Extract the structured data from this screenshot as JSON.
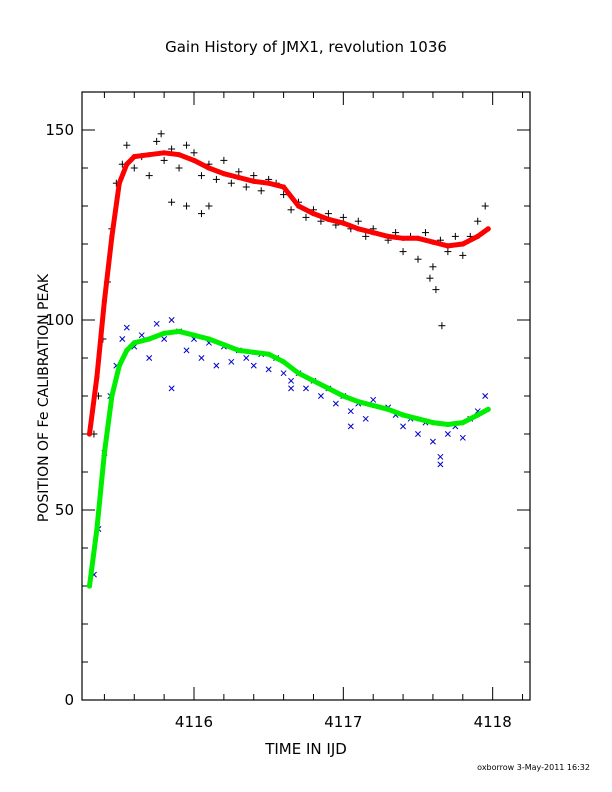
{
  "chart_data": {
    "type": "scatter",
    "title": "Gain History of JMX1, revolution 1036",
    "xlabel": "TIME IN IJD",
    "ylabel": "POSITION OF Fe CALIBRATION PEAK",
    "xlim": [
      4115.25,
      4118.25
    ],
    "ylim": [
      0,
      160
    ],
    "xticks": [
      4116,
      4117,
      4118
    ],
    "xtick_labels": [
      "4116",
      "4117",
      "4118"
    ],
    "yticks": [
      0,
      50,
      100,
      150
    ],
    "ytick_labels": [
      "0",
      "50",
      "100",
      "150"
    ],
    "grid": false,
    "legend": "none",
    "footer": "oxborrow   3-May-2011 16:32",
    "series": [
      {
        "kind": "raw_plus",
        "color": "#000000",
        "marker": "plus",
        "points": [
          [
            4115.33,
            70
          ],
          [
            4115.36,
            80
          ],
          [
            4115.39,
            95
          ],
          [
            4115.42,
            110
          ],
          [
            4115.45,
            124
          ],
          [
            4115.48,
            136
          ],
          [
            4115.52,
            141
          ],
          [
            4115.55,
            146
          ],
          [
            4115.6,
            140
          ],
          [
            4115.65,
            143
          ],
          [
            4115.7,
            138
          ],
          [
            4115.75,
            147
          ],
          [
            4115.78,
            149
          ],
          [
            4115.8,
            142
          ],
          [
            4115.85,
            145
          ],
          [
            4115.9,
            140
          ],
          [
            4115.95,
            146
          ],
          [
            4116.0,
            144
          ],
          [
            4116.05,
            138
          ],
          [
            4116.1,
            141
          ],
          [
            4116.15,
            137
          ],
          [
            4116.2,
            142
          ],
          [
            4116.25,
            136
          ],
          [
            4116.3,
            139
          ],
          [
            4116.35,
            135
          ],
          [
            4116.4,
            138
          ],
          [
            4116.45,
            134
          ],
          [
            4116.5,
            137
          ],
          [
            4116.55,
            136
          ],
          [
            4116.6,
            133
          ],
          [
            4116.65,
            129
          ],
          [
            4116.7,
            131
          ],
          [
            4116.75,
            127
          ],
          [
            4116.8,
            129
          ],
          [
            4116.85,
            126
          ],
          [
            4116.9,
            128
          ],
          [
            4116.95,
            125
          ],
          [
            4117.0,
            127
          ],
          [
            4117.05,
            124
          ],
          [
            4117.1,
            126
          ],
          [
            4117.15,
            122
          ],
          [
            4117.2,
            124
          ],
          [
            4117.3,
            121
          ],
          [
            4117.35,
            123
          ],
          [
            4117.4,
            118
          ],
          [
            4117.45,
            122
          ],
          [
            4117.5,
            116
          ],
          [
            4117.55,
            123
          ],
          [
            4117.6,
            114
          ],
          [
            4117.65,
            121
          ],
          [
            4117.7,
            118
          ],
          [
            4117.75,
            122
          ],
          [
            4117.8,
            117
          ],
          [
            4117.85,
            122
          ],
          [
            4117.9,
            126
          ],
          [
            4117.95,
            130
          ],
          [
            4115.95,
            130
          ],
          [
            4116.05,
            128
          ],
          [
            4116.1,
            130
          ],
          [
            4115.85,
            131
          ],
          [
            4117.58,
            111
          ],
          [
            4117.62,
            108
          ],
          [
            4117.66,
            98.5
          ]
        ]
      },
      {
        "kind": "fit",
        "color": "#ff0000",
        "marker": "line",
        "points": [
          [
            4115.3,
            70
          ],
          [
            4115.35,
            85
          ],
          [
            4115.4,
            105
          ],
          [
            4115.45,
            122
          ],
          [
            4115.5,
            136
          ],
          [
            4115.55,
            141
          ],
          [
            4115.6,
            143
          ],
          [
            4115.7,
            143.5
          ],
          [
            4115.8,
            144
          ],
          [
            4115.9,
            143.5
          ],
          [
            4116.0,
            142
          ],
          [
            4116.1,
            140
          ],
          [
            4116.2,
            138.5
          ],
          [
            4116.3,
            137.5
          ],
          [
            4116.4,
            136.5
          ],
          [
            4116.5,
            136
          ],
          [
            4116.6,
            135
          ],
          [
            4116.7,
            130
          ],
          [
            4116.8,
            128
          ],
          [
            4116.9,
            126.5
          ],
          [
            4117.0,
            125.5
          ],
          [
            4117.1,
            124
          ],
          [
            4117.2,
            123
          ],
          [
            4117.3,
            122
          ],
          [
            4117.4,
            121.5
          ],
          [
            4117.5,
            121.5
          ],
          [
            4117.6,
            120.5
          ],
          [
            4117.7,
            119.5
          ],
          [
            4117.8,
            120
          ],
          [
            4117.9,
            122
          ],
          [
            4117.97,
            124
          ]
        ]
      },
      {
        "kind": "raw_cross",
        "color": "#0000cc",
        "marker": "cross",
        "points": [
          [
            4115.33,
            33
          ],
          [
            4115.36,
            45
          ],
          [
            4115.4,
            65
          ],
          [
            4115.44,
            80
          ],
          [
            4115.48,
            88
          ],
          [
            4115.52,
            95
          ],
          [
            4115.55,
            98
          ],
          [
            4115.6,
            93
          ],
          [
            4115.65,
            96
          ],
          [
            4115.7,
            90
          ],
          [
            4115.75,
            99
          ],
          [
            4115.8,
            95
          ],
          [
            4115.85,
            100
          ],
          [
            4115.9,
            97
          ],
          [
            4115.95,
            92
          ],
          [
            4116.0,
            95
          ],
          [
            4116.05,
            90
          ],
          [
            4116.1,
            94
          ],
          [
            4116.15,
            88
          ],
          [
            4116.2,
            93
          ],
          [
            4116.25,
            89
          ],
          [
            4116.3,
            92
          ],
          [
            4116.35,
            90
          ],
          [
            4116.4,
            88
          ],
          [
            4116.45,
            91
          ],
          [
            4116.5,
            87
          ],
          [
            4116.55,
            90
          ],
          [
            4116.6,
            86
          ],
          [
            4116.65,
            84
          ],
          [
            4116.7,
            86
          ],
          [
            4116.75,
            82
          ],
          [
            4116.8,
            84
          ],
          [
            4116.85,
            80
          ],
          [
            4116.9,
            82
          ],
          [
            4116.95,
            78
          ],
          [
            4117.0,
            80
          ],
          [
            4117.05,
            76
          ],
          [
            4117.1,
            78
          ],
          [
            4117.15,
            74
          ],
          [
            4117.2,
            79
          ],
          [
            4117.3,
            77
          ],
          [
            4117.35,
            75
          ],
          [
            4117.4,
            72
          ],
          [
            4117.45,
            74
          ],
          [
            4117.5,
            70
          ],
          [
            4117.55,
            73
          ],
          [
            4117.6,
            68
          ],
          [
            4117.65,
            64
          ],
          [
            4117.7,
            70
          ],
          [
            4117.75,
            72
          ],
          [
            4117.8,
            69
          ],
          [
            4117.85,
            74
          ],
          [
            4117.9,
            76
          ],
          [
            4117.95,
            80
          ],
          [
            4115.85,
            82
          ],
          [
            4116.65,
            82
          ],
          [
            4117.05,
            72
          ],
          [
            4117.65,
            62
          ]
        ]
      },
      {
        "kind": "fit",
        "color": "#00ee00",
        "marker": "line",
        "points": [
          [
            4115.3,
            30
          ],
          [
            4115.35,
            45
          ],
          [
            4115.4,
            65
          ],
          [
            4115.45,
            80
          ],
          [
            4115.5,
            88
          ],
          [
            4115.55,
            92
          ],
          [
            4115.6,
            94
          ],
          [
            4115.7,
            95
          ],
          [
            4115.8,
            96.5
          ],
          [
            4115.9,
            97
          ],
          [
            4116.0,
            96
          ],
          [
            4116.1,
            95
          ],
          [
            4116.2,
            93.5
          ],
          [
            4116.3,
            92
          ],
          [
            4116.4,
            91.5
          ],
          [
            4116.5,
            91
          ],
          [
            4116.6,
            89
          ],
          [
            4116.7,
            86
          ],
          [
            4116.8,
            84
          ],
          [
            4116.9,
            82
          ],
          [
            4117.0,
            80
          ],
          [
            4117.1,
            78.5
          ],
          [
            4117.2,
            77.5
          ],
          [
            4117.3,
            76.5
          ],
          [
            4117.4,
            75
          ],
          [
            4117.5,
            74
          ],
          [
            4117.6,
            73
          ],
          [
            4117.7,
            72.5
          ],
          [
            4117.8,
            73
          ],
          [
            4117.9,
            75
          ],
          [
            4117.97,
            76.5
          ]
        ]
      }
    ]
  }
}
